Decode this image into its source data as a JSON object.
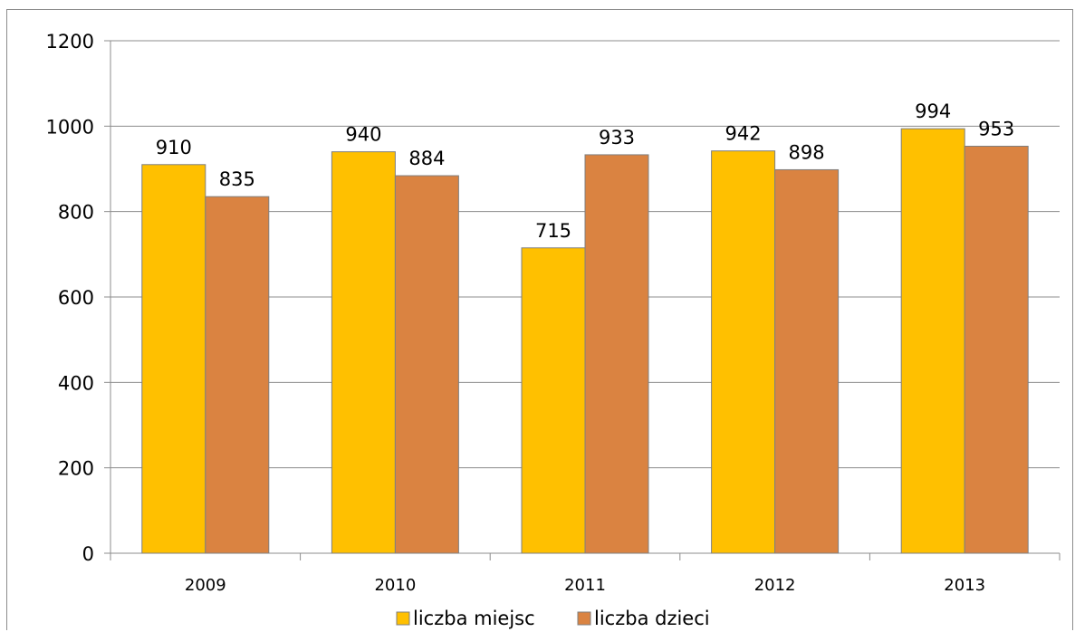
{
  "chart_data": {
    "type": "bar",
    "categories": [
      "2009",
      "2010",
      "2011",
      "2012",
      "2013"
    ],
    "series": [
      {
        "name": "liczba miejsc",
        "values": [
          910,
          940,
          715,
          942,
          994
        ],
        "color": "#FFC000"
      },
      {
        "name": "liczba dzieci",
        "values": [
          835,
          884,
          933,
          898,
          953
        ],
        "color": "#DA8341"
      }
    ],
    "ylim": [
      0,
      1200
    ],
    "yticks": [
      0,
      200,
      400,
      600,
      800,
      1000,
      1200
    ],
    "grid": true,
    "legend_position": "bottom",
    "data_labels": true,
    "title": "",
    "xlabel": "",
    "ylabel": ""
  }
}
